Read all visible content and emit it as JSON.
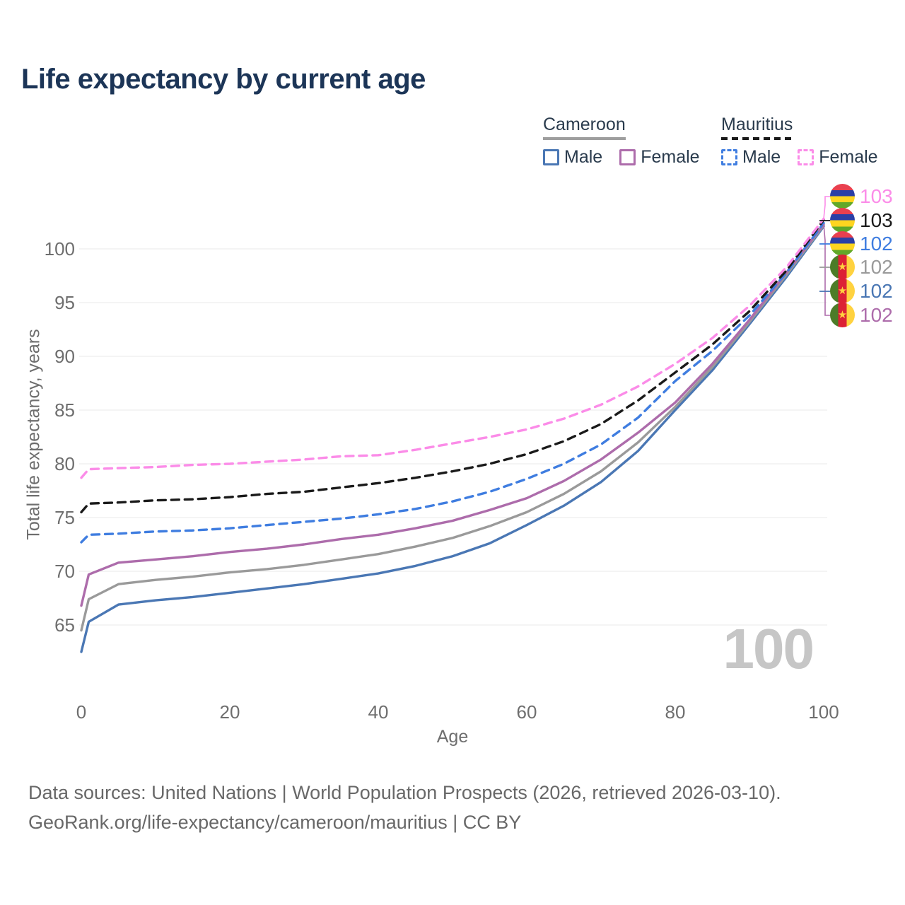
{
  "title": "Life expectancy by current age",
  "legend": {
    "groups": [
      {
        "label": "Cameroon",
        "underline_color": "#9e9e9e",
        "underline_style": "solid",
        "items": [
          {
            "label": "Male",
            "color": "#4a77b4",
            "dashed": false
          },
          {
            "label": "Female",
            "color": "#ad6cab",
            "dashed": false
          }
        ]
      },
      {
        "label": "Mauritius",
        "underline_color": "#1a1a1a",
        "underline_style": "dashed",
        "items": [
          {
            "label": "Male",
            "color": "#3f7de0",
            "dashed": true
          },
          {
            "label": "Female",
            "color": "#fb8ce8",
            "dashed": true
          }
        ]
      }
    ]
  },
  "chart_data": {
    "type": "line",
    "title": "Life expectancy by current age",
    "xlabel": "Age",
    "ylabel": "Total life expectancy, years",
    "xlim": [
      0,
      100
    ],
    "ylim": [
      62,
      104
    ],
    "xticks": [
      0,
      20,
      40,
      60,
      80,
      100
    ],
    "yticks": [
      65,
      70,
      75,
      80,
      85,
      90,
      95,
      100
    ],
    "grid": "horizontal",
    "legend_position": "top-right",
    "x": [
      0,
      1,
      5,
      10,
      15,
      20,
      25,
      30,
      35,
      40,
      45,
      50,
      55,
      60,
      65,
      70,
      75,
      80,
      85,
      90,
      95,
      100
    ],
    "series": [
      {
        "id": "cameroon-male",
        "name": "Cameroon Male",
        "color": "#4a77b4",
        "dashed": false,
        "values": [
          62.5,
          65.3,
          66.9,
          67.3,
          67.6,
          68.0,
          68.4,
          68.8,
          69.3,
          69.8,
          70.5,
          71.4,
          72.6,
          74.3,
          76.1,
          78.3,
          81.2,
          85.0,
          88.7,
          93.0,
          97.4,
          102.1
        ]
      },
      {
        "id": "cameroon-all",
        "name": "Cameroon",
        "color": "#9a9a9a",
        "dashed": false,
        "values": [
          64.5,
          67.4,
          68.8,
          69.2,
          69.5,
          69.9,
          70.2,
          70.6,
          71.1,
          71.6,
          72.3,
          73.1,
          74.2,
          75.5,
          77.2,
          79.3,
          82.0,
          85.3,
          89.0,
          93.2,
          97.6,
          102.2
        ]
      },
      {
        "id": "cameroon-female",
        "name": "Cameroon Female",
        "color": "#ad6cab",
        "dashed": false,
        "values": [
          66.8,
          69.7,
          70.8,
          71.1,
          71.4,
          71.8,
          72.1,
          72.5,
          73.0,
          73.4,
          74.0,
          74.7,
          75.7,
          76.8,
          78.4,
          80.4,
          82.9,
          85.7,
          89.3,
          93.4,
          97.8,
          102.3
        ]
      },
      {
        "id": "mauritius-male",
        "name": "Mauritius Male",
        "color": "#3f7de0",
        "dashed": true,
        "values": [
          72.7,
          73.4,
          73.5,
          73.7,
          73.8,
          74.0,
          74.3,
          74.6,
          74.9,
          75.3,
          75.8,
          76.5,
          77.4,
          78.6,
          80.0,
          81.8,
          84.3,
          87.7,
          90.5,
          93.8,
          97.8,
          102.4
        ]
      },
      {
        "id": "mauritius-all",
        "name": "Mauritius",
        "color": "#1a1a1a",
        "dashed": true,
        "values": [
          75.5,
          76.3,
          76.4,
          76.6,
          76.7,
          76.9,
          77.2,
          77.4,
          77.8,
          78.2,
          78.7,
          79.3,
          80.0,
          80.9,
          82.1,
          83.7,
          85.9,
          88.5,
          91.1,
          94.2,
          98.0,
          102.7
        ]
      },
      {
        "id": "mauritius-female",
        "name": "Mauritius Female",
        "color": "#fb8ce8",
        "dashed": true,
        "values": [
          78.7,
          79.5,
          79.6,
          79.7,
          79.9,
          80.0,
          80.2,
          80.4,
          80.7,
          80.8,
          81.3,
          81.9,
          82.5,
          83.2,
          84.2,
          85.5,
          87.2,
          89.3,
          91.7,
          94.7,
          98.3,
          102.8
        ]
      }
    ]
  },
  "end_labels": [
    {
      "value": "103",
      "color": "#fb8ce8",
      "flag": "mauritius"
    },
    {
      "value": "103",
      "color": "#1a1a1a",
      "flag": "mauritius"
    },
    {
      "value": "102",
      "color": "#3f7de0",
      "flag": "mauritius"
    },
    {
      "value": "102",
      "color": "#9a9a9a",
      "flag": "cameroon"
    },
    {
      "value": "102",
      "color": "#4a77b4",
      "flag": "cameroon"
    },
    {
      "value": "102",
      "color": "#ad6cab",
      "flag": "cameroon"
    }
  ],
  "flags": {
    "mauritius": {
      "stripes": [
        "#E9404F",
        "#2B3FA6",
        "#FFD520",
        "#62A829"
      ]
    },
    "cameroon": {
      "stripes": [
        "#4C7C28",
        "#DC2135",
        "#FFD23F"
      ],
      "star": "#FFD23F",
      "star_glyph": "★"
    }
  },
  "watermark": "100",
  "footer": {
    "line1": "Data sources: United Nations | World Population Prospects (2026, retrieved 2026-03-10).",
    "line2": "GeoRank.org/life-expectancy/cameroon/mauritius | CC BY"
  }
}
